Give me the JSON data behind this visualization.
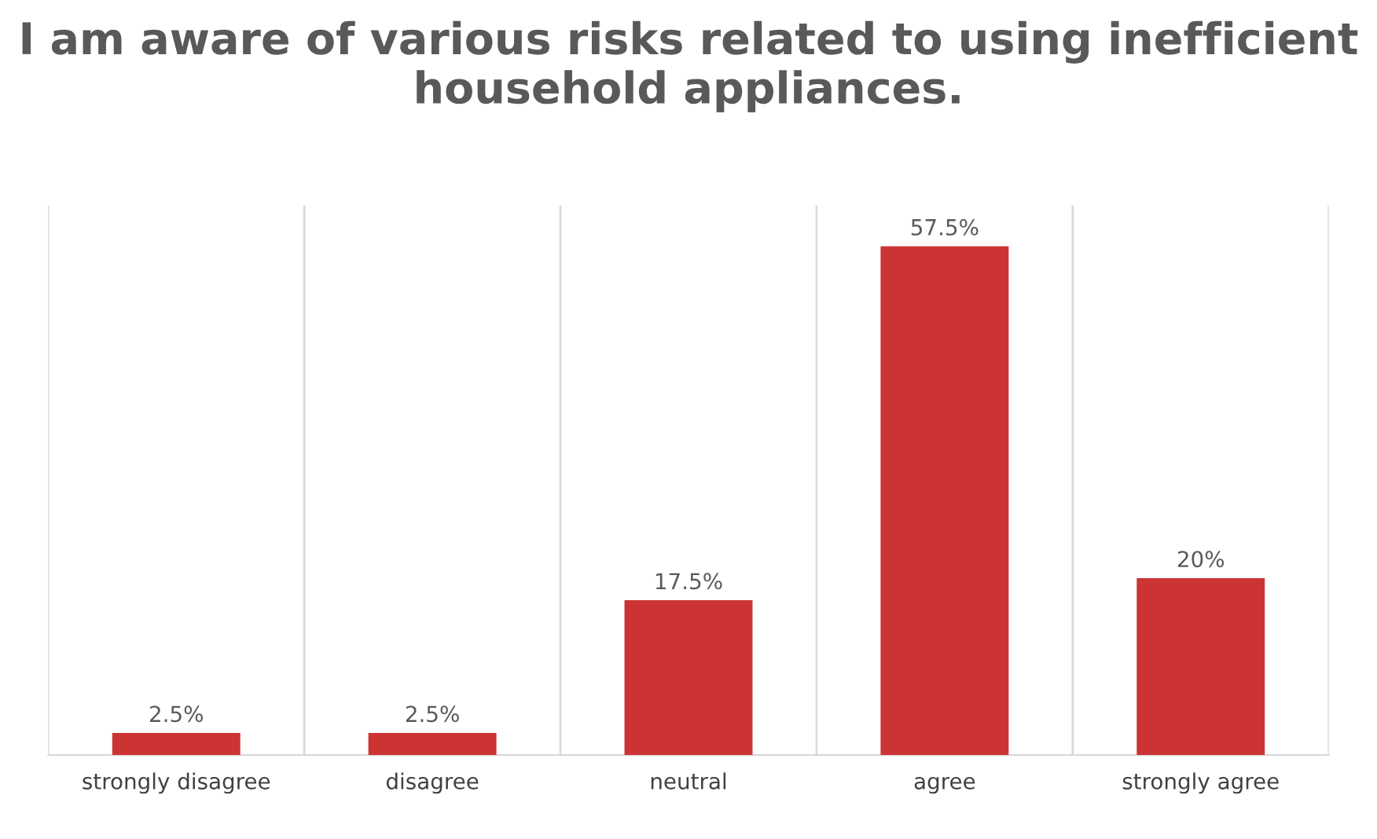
{
  "chart_data": {
    "type": "bar",
    "title": "I am aware of various risks related to using inefficient household appliances.",
    "categories": [
      "strongly disagree",
      "disagree",
      "neutral",
      "agree",
      "strongly agree"
    ],
    "values": [
      2.5,
      2.5,
      17.5,
      57.5,
      20
    ],
    "color": "#cc3333",
    "value_labels": [
      "2.5%",
      "2.5%",
      "17.5%",
      "57.5%",
      "20%"
    ],
    "grid": "x",
    "legend": false,
    "tick_labels": "x"
  }
}
